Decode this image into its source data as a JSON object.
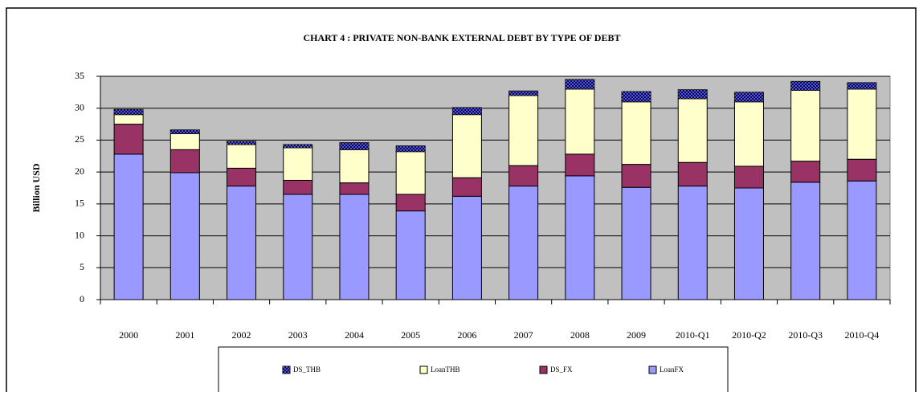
{
  "chart_data": {
    "type": "stacked_bar",
    "title": "CHART  4 : PRIVATE NON-BANK EXTERNAL DEBT BY TYPE OF DEBT",
    "ylabel": "Billion USD",
    "categories": [
      "2000",
      "2001",
      "2002",
      "2003",
      "2004",
      "2005",
      "2006",
      "2007",
      "2008",
      "2009",
      "2010-Q1",
      "2010-Q2",
      "2010-Q3",
      "2010-Q4"
    ],
    "series": [
      {
        "name": "LoanFX",
        "color": "#9999ff",
        "values": [
          22.8,
          19.9,
          17.8,
          16.5,
          16.5,
          13.9,
          16.2,
          17.8,
          19.4,
          17.6,
          17.8,
          17.5,
          18.4,
          18.6
        ]
      },
      {
        "name": "DS_FX",
        "color": "#993366",
        "values": [
          4.7,
          3.6,
          2.8,
          2.2,
          1.8,
          2.6,
          2.9,
          3.2,
          3.4,
          3.6,
          3.7,
          3.4,
          3.3,
          3.4
        ]
      },
      {
        "name": "LoanTHB",
        "color": "#ffffcc",
        "values": [
          1.5,
          2.5,
          3.7,
          5.1,
          5.2,
          6.7,
          9.9,
          11,
          10.2,
          9.8,
          10,
          10.1,
          11.1,
          11
        ]
      },
      {
        "name": "DS_THB",
        "color": "#000080",
        "values": [
          0.8,
          0.6,
          0.5,
          0.5,
          1.1,
          0.9,
          1.1,
          0.7,
          1.5,
          1.6,
          1.4,
          1.5,
          1.4,
          1
        ]
      }
    ],
    "ylim": [
      0,
      35
    ],
    "yticks": [
      0,
      5,
      10,
      15,
      20,
      25,
      30,
      35
    ],
    "grid": true,
    "legend": "bottom"
  }
}
